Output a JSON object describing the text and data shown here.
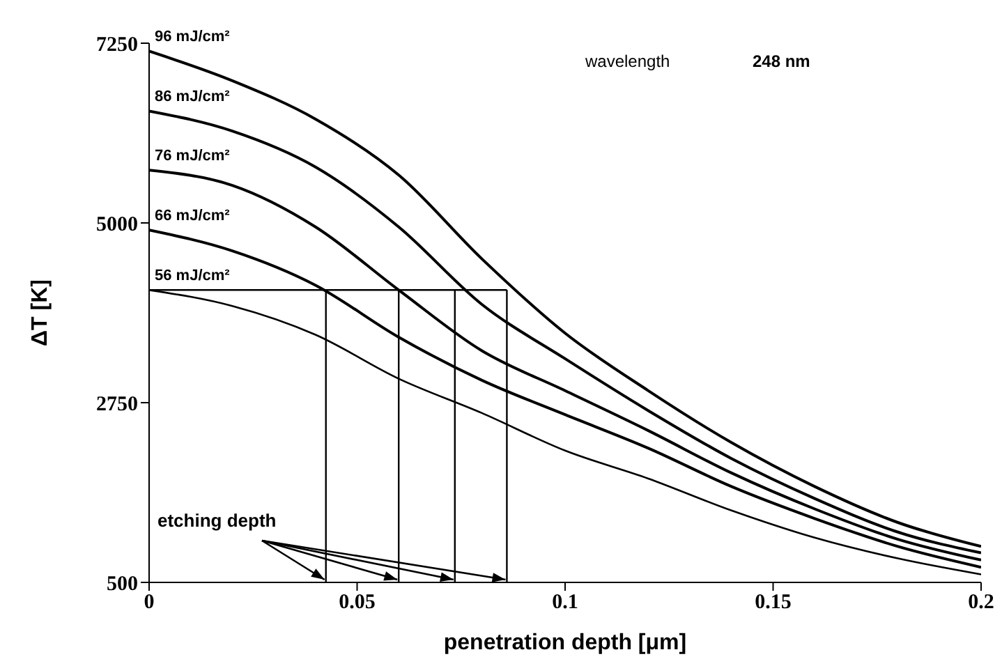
{
  "chart_data": {
    "type": "line",
    "xlabel": "penetration depth [μm]",
    "ylabel": "ΔT [K]",
    "x": [
      0,
      0.02,
      0.04,
      0.06,
      0.08,
      0.1,
      0.12,
      0.14,
      0.16,
      0.18,
      0.2
    ],
    "series": [
      {
        "name": "96 mJ/cm²",
        "color": "#000000",
        "values": [
          7150,
          6780,
          6300,
          5600,
          4550,
          3620,
          2900,
          2250,
          1700,
          1250,
          950
        ]
      },
      {
        "name": "86 mJ/cm²",
        "color": "#000000",
        "values": [
          6400,
          6150,
          5700,
          4950,
          3980,
          3300,
          2650,
          2050,
          1550,
          1130,
          870
        ]
      },
      {
        "name": "76 mJ/cm²",
        "color": "#000000",
        "values": [
          5660,
          5470,
          4950,
          4160,
          3400,
          2900,
          2400,
          1870,
          1420,
          1040,
          780
        ]
      },
      {
        "name": "66 mJ/cm²",
        "color": "#000000",
        "values": [
          4910,
          4650,
          4220,
          3570,
          3030,
          2600,
          2180,
          1700,
          1300,
          950,
          690
        ]
      },
      {
        "name": "56 mJ/cm²",
        "color": "#000000",
        "values": [
          4160,
          3960,
          3600,
          3050,
          2620,
          2150,
          1800,
          1400,
          1060,
          800,
          600
        ]
      }
    ],
    "xlim": [
      0,
      0.2
    ],
    "xticks": [
      0,
      0.05,
      0.1,
      0.15,
      0.2
    ],
    "ylim": [
      500,
      7250
    ],
    "yticks": [
      500,
      2750,
      5000,
      7250
    ],
    "ref_lines": [
      {
        "axis": "y",
        "value": 4160,
        "color": "#000000"
      },
      {
        "axis": "x",
        "value": 0.0425,
        "color": "#000000"
      },
      {
        "axis": "x",
        "value": 0.06,
        "color": "#000000"
      },
      {
        "axis": "x",
        "value": 0.0735,
        "color": "#000000"
      },
      {
        "axis": "x",
        "value": 0.086,
        "color": "#000000"
      }
    ],
    "annotations": [
      "wavelength",
      "248 nm",
      {
        "text": "etching depth",
        "x": 0.0425,
        "y": 500
      }
    ],
    "grid": false,
    "marker": "none",
    "line_style": "solid"
  }
}
